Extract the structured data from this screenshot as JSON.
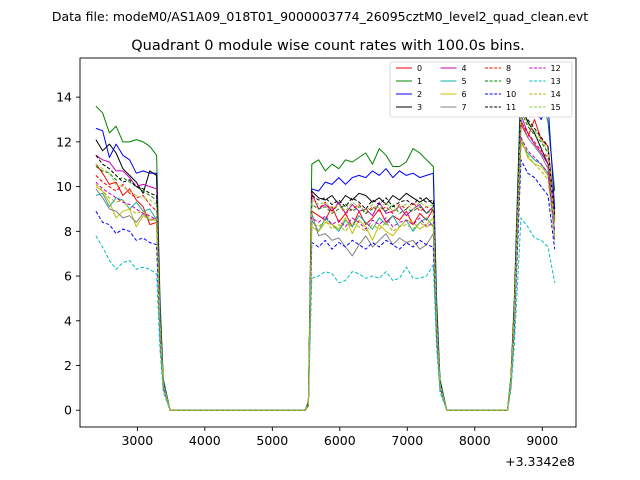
{
  "suptitle": "Data file: modeM0/AS1A09_018T01_9000003774_26095cztM0_level2_quad_clean.evt",
  "chart_data": {
    "type": "line",
    "title": "Quadrant 0 module wise count rates with 100.0s bins.",
    "xlabel": "",
    "ylabel": "",
    "x_offset_label": "+3.3342e8",
    "xlim": [
      2150,
      9500
    ],
    "ylim": [
      -0.75,
      15.75
    ],
    "xticks": [
      3000,
      4000,
      5000,
      6000,
      7000,
      8000,
      9000
    ],
    "yticks": [
      0,
      2,
      4,
      6,
      8,
      10,
      12,
      14
    ],
    "grid": false,
    "legend_location": "top-right",
    "legend_columns": 4,
    "x": [
      2385,
      2485,
      2585,
      2685,
      2785,
      2885,
      2985,
      3085,
      3185,
      3285,
      3335,
      3385,
      3485,
      5485,
      5535,
      5585,
      5685,
      5785,
      5885,
      5985,
      6085,
      6185,
      6285,
      6385,
      6485,
      6585,
      6685,
      6785,
      6885,
      6985,
      7085,
      7185,
      7285,
      7385,
      7435,
      7485,
      7585,
      8485,
      8535,
      8585,
      8685,
      8785,
      8885,
      8985,
      9085,
      9185
    ],
    "series": [
      {
        "name": "0",
        "color": "#ff0000",
        "dash": "solid",
        "values": [
          11.0,
          10.6,
          10.1,
          10.2,
          9.6,
          9.9,
          9.4,
          9.1,
          8.3,
          8.4,
          4.0,
          1.2,
          0,
          0,
          0.2,
          8.9,
          8.7,
          8.5,
          9.1,
          8.4,
          8.8,
          8.2,
          8.9,
          8.3,
          8.6,
          9.0,
          8.4,
          8.7,
          8.5,
          8.9,
          8.3,
          8.8,
          8.5,
          9.0,
          4.0,
          1.2,
          0,
          0,
          1.2,
          4.2,
          12.8,
          12.2,
          13.0,
          12.1,
          11.8,
          8.8
        ]
      },
      {
        "name": "1",
        "color": "#008000",
        "dash": "solid",
        "values": [
          13.6,
          13.3,
          12.4,
          12.7,
          12.0,
          12.0,
          12.1,
          12.0,
          11.8,
          11.4,
          5.0,
          1.4,
          0,
          0,
          0.4,
          11.0,
          11.2,
          10.7,
          11.0,
          10.8,
          11.2,
          11.1,
          11.3,
          11.5,
          11.0,
          11.7,
          11.4,
          10.9,
          10.9,
          11.1,
          11.7,
          11.5,
          11.2,
          10.9,
          5.0,
          1.4,
          0,
          0,
          1.5,
          5.0,
          15.0,
          14.0,
          14.3,
          14.0,
          12.9,
          9.8
        ]
      },
      {
        "name": "2",
        "color": "#0000ff",
        "dash": "solid",
        "values": [
          12.6,
          12.5,
          11.3,
          11.9,
          11.4,
          11.2,
          10.6,
          10.7,
          10.6,
          10.6,
          4.6,
          1.3,
          0,
          0,
          0.3,
          9.9,
          9.8,
          10.2,
          10.1,
          10.4,
          10.1,
          10.4,
          10.5,
          10.4,
          10.7,
          10.5,
          10.8,
          10.4,
          10.7,
          10.5,
          10.6,
          10.4,
          10.5,
          10.6,
          4.6,
          1.3,
          0,
          0,
          1.4,
          4.7,
          14.4,
          13.6,
          13.4,
          13.0,
          13.7,
          9.0
        ]
      },
      {
        "name": "3",
        "color": "#000000",
        "dash": "solid",
        "values": [
          12.1,
          11.6,
          11.9,
          11.5,
          10.8,
          10.5,
          10.2,
          9.7,
          10.7,
          10.5,
          4.3,
          1.2,
          0,
          0,
          0.3,
          9.8,
          9.5,
          9.4,
          9.6,
          9.2,
          9.6,
          9.4,
          9.7,
          9.6,
          9.3,
          9.5,
          9.2,
          9.6,
          9.4,
          9.7,
          9.5,
          9.3,
          9.5,
          9.2,
          4.3,
          1.2,
          0,
          0,
          1.3,
          4.5,
          13.6,
          12.9,
          12.4,
          11.7,
          11.0,
          8.7
        ]
      },
      {
        "name": "4",
        "color": "#c000c0",
        "dash": "solid",
        "values": [
          11.4,
          11.2,
          11.1,
          10.7,
          10.7,
          10.4,
          10.0,
          10.1,
          10.0,
          9.9,
          4.2,
          1.2,
          0,
          0,
          0.3,
          9.7,
          9.0,
          9.2,
          8.9,
          9.3,
          8.8,
          9.2,
          8.9,
          9.0,
          8.7,
          9.3,
          8.8,
          8.9,
          9.1,
          8.7,
          9.0,
          9.2,
          8.8,
          9.1,
          4.2,
          1.2,
          0,
          0,
          1.3,
          4.6,
          13.2,
          12.4,
          11.9,
          11.5,
          11.0,
          8.6
        ]
      },
      {
        "name": "5",
        "color": "#10b0a0",
        "dash": "solid",
        "values": [
          9.6,
          9.7,
          9.1,
          9.5,
          9.4,
          9.0,
          9.3,
          8.9,
          9.0,
          8.5,
          3.8,
          1.1,
          0,
          0,
          0.2,
          8.5,
          8.0,
          8.6,
          8.3,
          8.0,
          8.5,
          8.2,
          8.7,
          8.4,
          8.1,
          8.6,
          8.3,
          8.7,
          8.2,
          8.5,
          8.0,
          8.4,
          8.6,
          8.2,
          3.8,
          1.1,
          0,
          0,
          1.2,
          4.0,
          12.0,
          11.5,
          11.2,
          11.0,
          10.6,
          8.0
        ]
      },
      {
        "name": "6",
        "color": "#c0c000",
        "dash": "solid",
        "values": [
          10.0,
          9.8,
          9.3,
          8.6,
          8.9,
          9.0,
          8.2,
          8.7,
          8.5,
          8.5,
          3.7,
          1.1,
          0,
          0,
          0.2,
          8.2,
          8.0,
          8.4,
          8.3,
          8.1,
          8.6,
          7.9,
          8.5,
          8.2,
          7.6,
          8.3,
          8.0,
          7.8,
          8.2,
          8.5,
          8.4,
          8.1,
          8.3,
          8.6,
          3.7,
          1.1,
          0,
          0,
          1.2,
          4.0,
          12.2,
          11.3,
          11.0,
          10.9,
          10.5,
          7.8
        ]
      },
      {
        "name": "7",
        "color": "#808080",
        "dash": "solid",
        "values": [
          9.9,
          9.5,
          9.0,
          8.9,
          8.6,
          8.7,
          8.4,
          8.8,
          8.5,
          8.6,
          3.7,
          1.1,
          0,
          0,
          0.2,
          8.8,
          7.8,
          7.9,
          7.6,
          7.7,
          7.3,
          6.9,
          7.4,
          7.8,
          7.3,
          7.6,
          7.9,
          7.4,
          7.7,
          7.5,
          7.6,
          7.2,
          7.4,
          7.9,
          3.6,
          1.1,
          0,
          0,
          1.2,
          4.0,
          13.0,
          12.2,
          11.8,
          11.4,
          10.8,
          7.6
        ]
      },
      {
        "name": "8",
        "color": "#ff0000",
        "dash": "dashed",
        "values": [
          10.5,
          10.2,
          10.0,
          9.8,
          10.1,
          9.7,
          9.5,
          9.6,
          9.2,
          8.9,
          3.9,
          1.1,
          0,
          0,
          0.3,
          9.7,
          9.0,
          9.3,
          8.9,
          9.2,
          8.8,
          9.0,
          9.2,
          8.8,
          9.1,
          8.9,
          9.1,
          8.8,
          9.2,
          9.0,
          9.3,
          8.9,
          9.1,
          8.9,
          3.9,
          1.1,
          0,
          0,
          1.3,
          4.4,
          12.9,
          12.4,
          12.0,
          11.6,
          11.3,
          8.5
        ]
      },
      {
        "name": "9",
        "color": "#008000",
        "dash": "dashed",
        "values": [
          10.9,
          10.7,
          10.6,
          10.3,
          10.4,
          10.2,
          10.0,
          9.8,
          9.6,
          9.4,
          4.1,
          1.2,
          0,
          0,
          0.3,
          9.2,
          9.0,
          9.1,
          8.8,
          9.0,
          9.2,
          8.9,
          9.1,
          8.8,
          9.0,
          9.1,
          8.9,
          9.2,
          8.8,
          9.0,
          8.9,
          9.1,
          8.8,
          9.0,
          4.0,
          1.2,
          0,
          0,
          1.3,
          4.5,
          13.4,
          12.7,
          12.3,
          12.0,
          11.5,
          8.4
        ]
      },
      {
        "name": "10",
        "color": "#0000ff",
        "dash": "dashed",
        "values": [
          8.9,
          8.4,
          8.3,
          7.9,
          8.1,
          8.0,
          7.6,
          7.7,
          7.5,
          7.4,
          3.3,
          1.0,
          0,
          0,
          0.2,
          7.5,
          7.3,
          7.6,
          7.2,
          7.5,
          7.3,
          7.6,
          7.4,
          7.2,
          7.5,
          7.3,
          7.6,
          7.4,
          7.2,
          7.5,
          7.3,
          7.6,
          7.4,
          7.3,
          3.3,
          1.0,
          0,
          0,
          1.1,
          3.6,
          11.2,
          10.6,
          10.4,
          10.0,
          9.6,
          7.2
        ]
      },
      {
        "name": "11",
        "color": "#000000",
        "dash": "dashed",
        "values": [
          11.4,
          11.0,
          10.8,
          10.5,
          10.2,
          10.3,
          10.0,
          9.9,
          9.7,
          9.6,
          4.2,
          1.2,
          0,
          0,
          0.3,
          9.6,
          9.4,
          9.5,
          9.2,
          9.4,
          9.1,
          9.5,
          9.3,
          9.0,
          9.4,
          9.2,
          9.5,
          9.1,
          9.3,
          9.4,
          9.2,
          9.5,
          9.3,
          9.4,
          4.2,
          1.2,
          0,
          0,
          1.3,
          4.6,
          13.8,
          13.0,
          12.6,
          12.2,
          11.8,
          8.6
        ]
      },
      {
        "name": "12",
        "color": "#c000c0",
        "dash": "dashed",
        "values": [
          10.2,
          9.9,
          9.7,
          9.5,
          9.3,
          9.2,
          9.0,
          8.8,
          8.7,
          8.5,
          3.8,
          1.1,
          0,
          0,
          0.2,
          8.6,
          8.4,
          8.7,
          8.3,
          8.5,
          8.2,
          8.6,
          8.4,
          8.1,
          8.5,
          8.3,
          8.6,
          8.2,
          8.4,
          8.5,
          8.3,
          8.6,
          8.2,
          8.4,
          3.8,
          1.1,
          0,
          0,
          1.2,
          4.1,
          12.2,
          11.6,
          11.3,
          11.0,
          10.6,
          8.0
        ]
      },
      {
        "name": "13",
        "color": "#00c0c0",
        "dash": "dashed",
        "values": [
          7.8,
          7.3,
          6.7,
          6.3,
          6.6,
          6.7,
          6.3,
          6.4,
          6.3,
          6.1,
          2.7,
          0.8,
          0,
          0,
          0.2,
          5.9,
          6.0,
          6.2,
          6.1,
          5.7,
          5.8,
          6.2,
          6.1,
          5.9,
          6.0,
          5.9,
          6.2,
          5.8,
          5.9,
          6.4,
          5.9,
          5.9,
          6.0,
          6.5,
          2.8,
          0.8,
          0,
          0,
          0.9,
          2.9,
          8.6,
          8.2,
          7.7,
          7.6,
          7.3,
          5.7
        ]
      },
      {
        "name": "14",
        "color": "#b0b000",
        "dash": "dashed",
        "values": [
          10.1,
          9.8,
          9.5,
          9.3,
          9.4,
          9.0,
          8.8,
          8.9,
          8.6,
          8.4,
          3.7,
          1.1,
          0,
          0,
          0.2,
          8.4,
          8.2,
          8.5,
          8.1,
          8.3,
          8.0,
          8.4,
          8.2,
          8.0,
          8.3,
          8.1,
          8.4,
          8.0,
          8.2,
          8.3,
          8.1,
          8.4,
          8.2,
          8.3,
          3.7,
          1.1,
          0,
          0,
          1.2,
          4.0,
          12.0,
          11.4,
          11.0,
          10.7,
          10.3,
          7.8
        ]
      },
      {
        "name": "15",
        "color": "#90d030",
        "dash": "dashed",
        "values": [
          11.0,
          10.8,
          10.6,
          10.1,
          10.0,
          9.8,
          9.6,
          9.5,
          9.4,
          9.2,
          4.0,
          1.2,
          0,
          0,
          0.3,
          9.4,
          9.2,
          9.3,
          9.0,
          9.2,
          8.9,
          9.3,
          9.1,
          8.9,
          9.2,
          9.0,
          9.3,
          8.9,
          9.1,
          9.2,
          9.0,
          9.3,
          9.1,
          9.2,
          4.1,
          1.2,
          0,
          0,
          1.3,
          4.4,
          13.5,
          12.8,
          12.5,
          12.1,
          11.6,
          8.4
        ]
      }
    ]
  }
}
